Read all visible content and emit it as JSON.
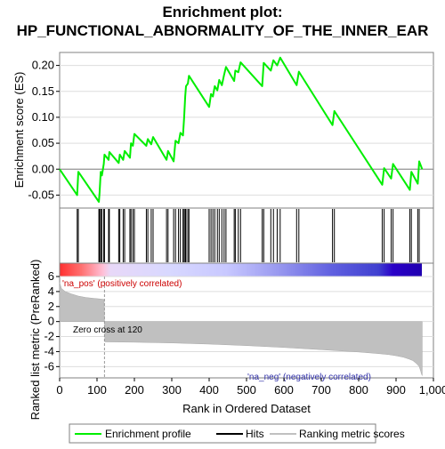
{
  "chart_data": {
    "type": "line",
    "title_line1": "Enrichment plot:",
    "title_line2": "HP_FUNCTIONAL_ABNORMALITY_OF_THE_INNER_EAR",
    "ylabel_top": "Enrichment score (ES)",
    "ylabel_bottom": "Ranked list metric (PreRanked)",
    "xlabel": "Rank in Ordered Dataset",
    "xlim": [
      0,
      1000
    ],
    "es_ylim": [
      -0.075,
      0.225
    ],
    "metric_ylim": [
      -7.5,
      6
    ],
    "es_yticks": [
      "0.20",
      "0.15",
      "0.10",
      "0.05",
      "0.00",
      "-0.05"
    ],
    "es_ytick_values": [
      0.2,
      0.15,
      0.1,
      0.05,
      0.0,
      -0.05
    ],
    "metric_yticks": [
      "6",
      "4",
      "2",
      "0",
      "-2",
      "-4",
      "-6"
    ],
    "metric_ytick_values": [
      6,
      4,
      2,
      0,
      -2,
      -4,
      -6
    ],
    "xticks": [
      "0",
      "100",
      "200",
      "300",
      "400",
      "500",
      "600",
      "700",
      "800",
      "900",
      "1,000"
    ],
    "xtick_values": [
      0,
      100,
      200,
      300,
      400,
      500,
      600,
      700,
      800,
      900,
      1000
    ],
    "series": [
      {
        "name": "Enrichment profile",
        "color": "#00ee00",
        "x": [
          0,
          47,
          50,
          105,
          107,
          110,
          113,
          118,
          120,
          131,
          133,
          158,
          161,
          170,
          174,
          188,
          191,
          196,
          200,
          232,
          236,
          245,
          250,
          286,
          290,
          305,
          310,
          318,
          323,
          330,
          333,
          336,
          338,
          343,
          346,
          400,
          405,
          410,
          415,
          422,
          427,
          434,
          440,
          445,
          467,
          470,
          478,
          484,
          542,
          546,
          565,
          572,
          582,
          590,
          634,
          640,
          730,
          735,
          863,
          868,
          887,
          892,
          937,
          941,
          958,
          962,
          970
        ],
        "y": [
          0.0,
          -0.05,
          -0.005,
          -0.063,
          -0.045,
          -0.005,
          -0.012,
          0.01,
          0.028,
          0.018,
          0.033,
          0.012,
          0.028,
          0.018,
          0.035,
          0.022,
          0.05,
          0.045,
          0.068,
          0.045,
          0.058,
          0.048,
          0.062,
          0.018,
          0.035,
          0.015,
          0.055,
          0.05,
          0.07,
          0.065,
          0.1,
          0.14,
          0.16,
          0.165,
          0.18,
          0.12,
          0.145,
          0.14,
          0.16,
          0.152,
          0.172,
          0.162,
          0.182,
          0.197,
          0.17,
          0.19,
          0.187,
          0.206,
          0.16,
          0.205,
          0.19,
          0.21,
          0.2,
          0.215,
          0.162,
          0.188,
          0.085,
          0.112,
          -0.03,
          0.002,
          -0.018,
          0.01,
          -0.04,
          -0.005,
          -0.028,
          0.015,
          0.0
        ]
      }
    ],
    "hits": [
      47,
      50,
      105,
      107,
      110,
      113,
      118,
      120,
      131,
      133,
      158,
      161,
      170,
      174,
      188,
      191,
      196,
      200,
      232,
      236,
      245,
      250,
      286,
      290,
      305,
      310,
      318,
      323,
      330,
      333,
      336,
      338,
      343,
      346,
      400,
      405,
      410,
      415,
      422,
      427,
      434,
      440,
      445,
      467,
      470,
      478,
      484,
      542,
      546,
      565,
      572,
      582,
      590,
      634,
      640,
      730,
      735,
      863,
      868,
      887,
      892,
      937,
      941,
      958,
      962
    ],
    "metric_curve": {
      "x": [
        0,
        5,
        15,
        30,
        50,
        70,
        90,
        110,
        119,
        120,
        121,
        200,
        300,
        400,
        500,
        600,
        700,
        800,
        850,
        880,
        900,
        920,
        935,
        945,
        955,
        962,
        966,
        968,
        970
      ],
      "y": [
        5.2,
        4.4,
        4.0,
        3.7,
        3.4,
        3.2,
        3.1,
        3.0,
        2.95,
        0.0,
        -2.7,
        -2.75,
        -2.85,
        -3.0,
        -3.2,
        -3.45,
        -3.75,
        -4.05,
        -4.25,
        -4.4,
        -4.55,
        -4.75,
        -5.0,
        -5.2,
        -5.6,
        -6.0,
        -6.6,
        -7.0,
        -7.2
      ]
    },
    "zero_cross_label": "Zero cross at 120",
    "zero_cross_x": 120,
    "pos_label": "'na_pos' (positively correlated)",
    "neg_label": "'na_neg' (negatively correlated)",
    "legend": [
      "Enrichment profile",
      "Hits",
      "Ranking metric scores"
    ],
    "colors": {
      "es_line": "#00ee00",
      "hits": "#000000",
      "metric_fill": "#c0c0c0",
      "pos_text": "#cc0000",
      "neg_text": "#3333aa",
      "grid": "#dddddd"
    }
  }
}
